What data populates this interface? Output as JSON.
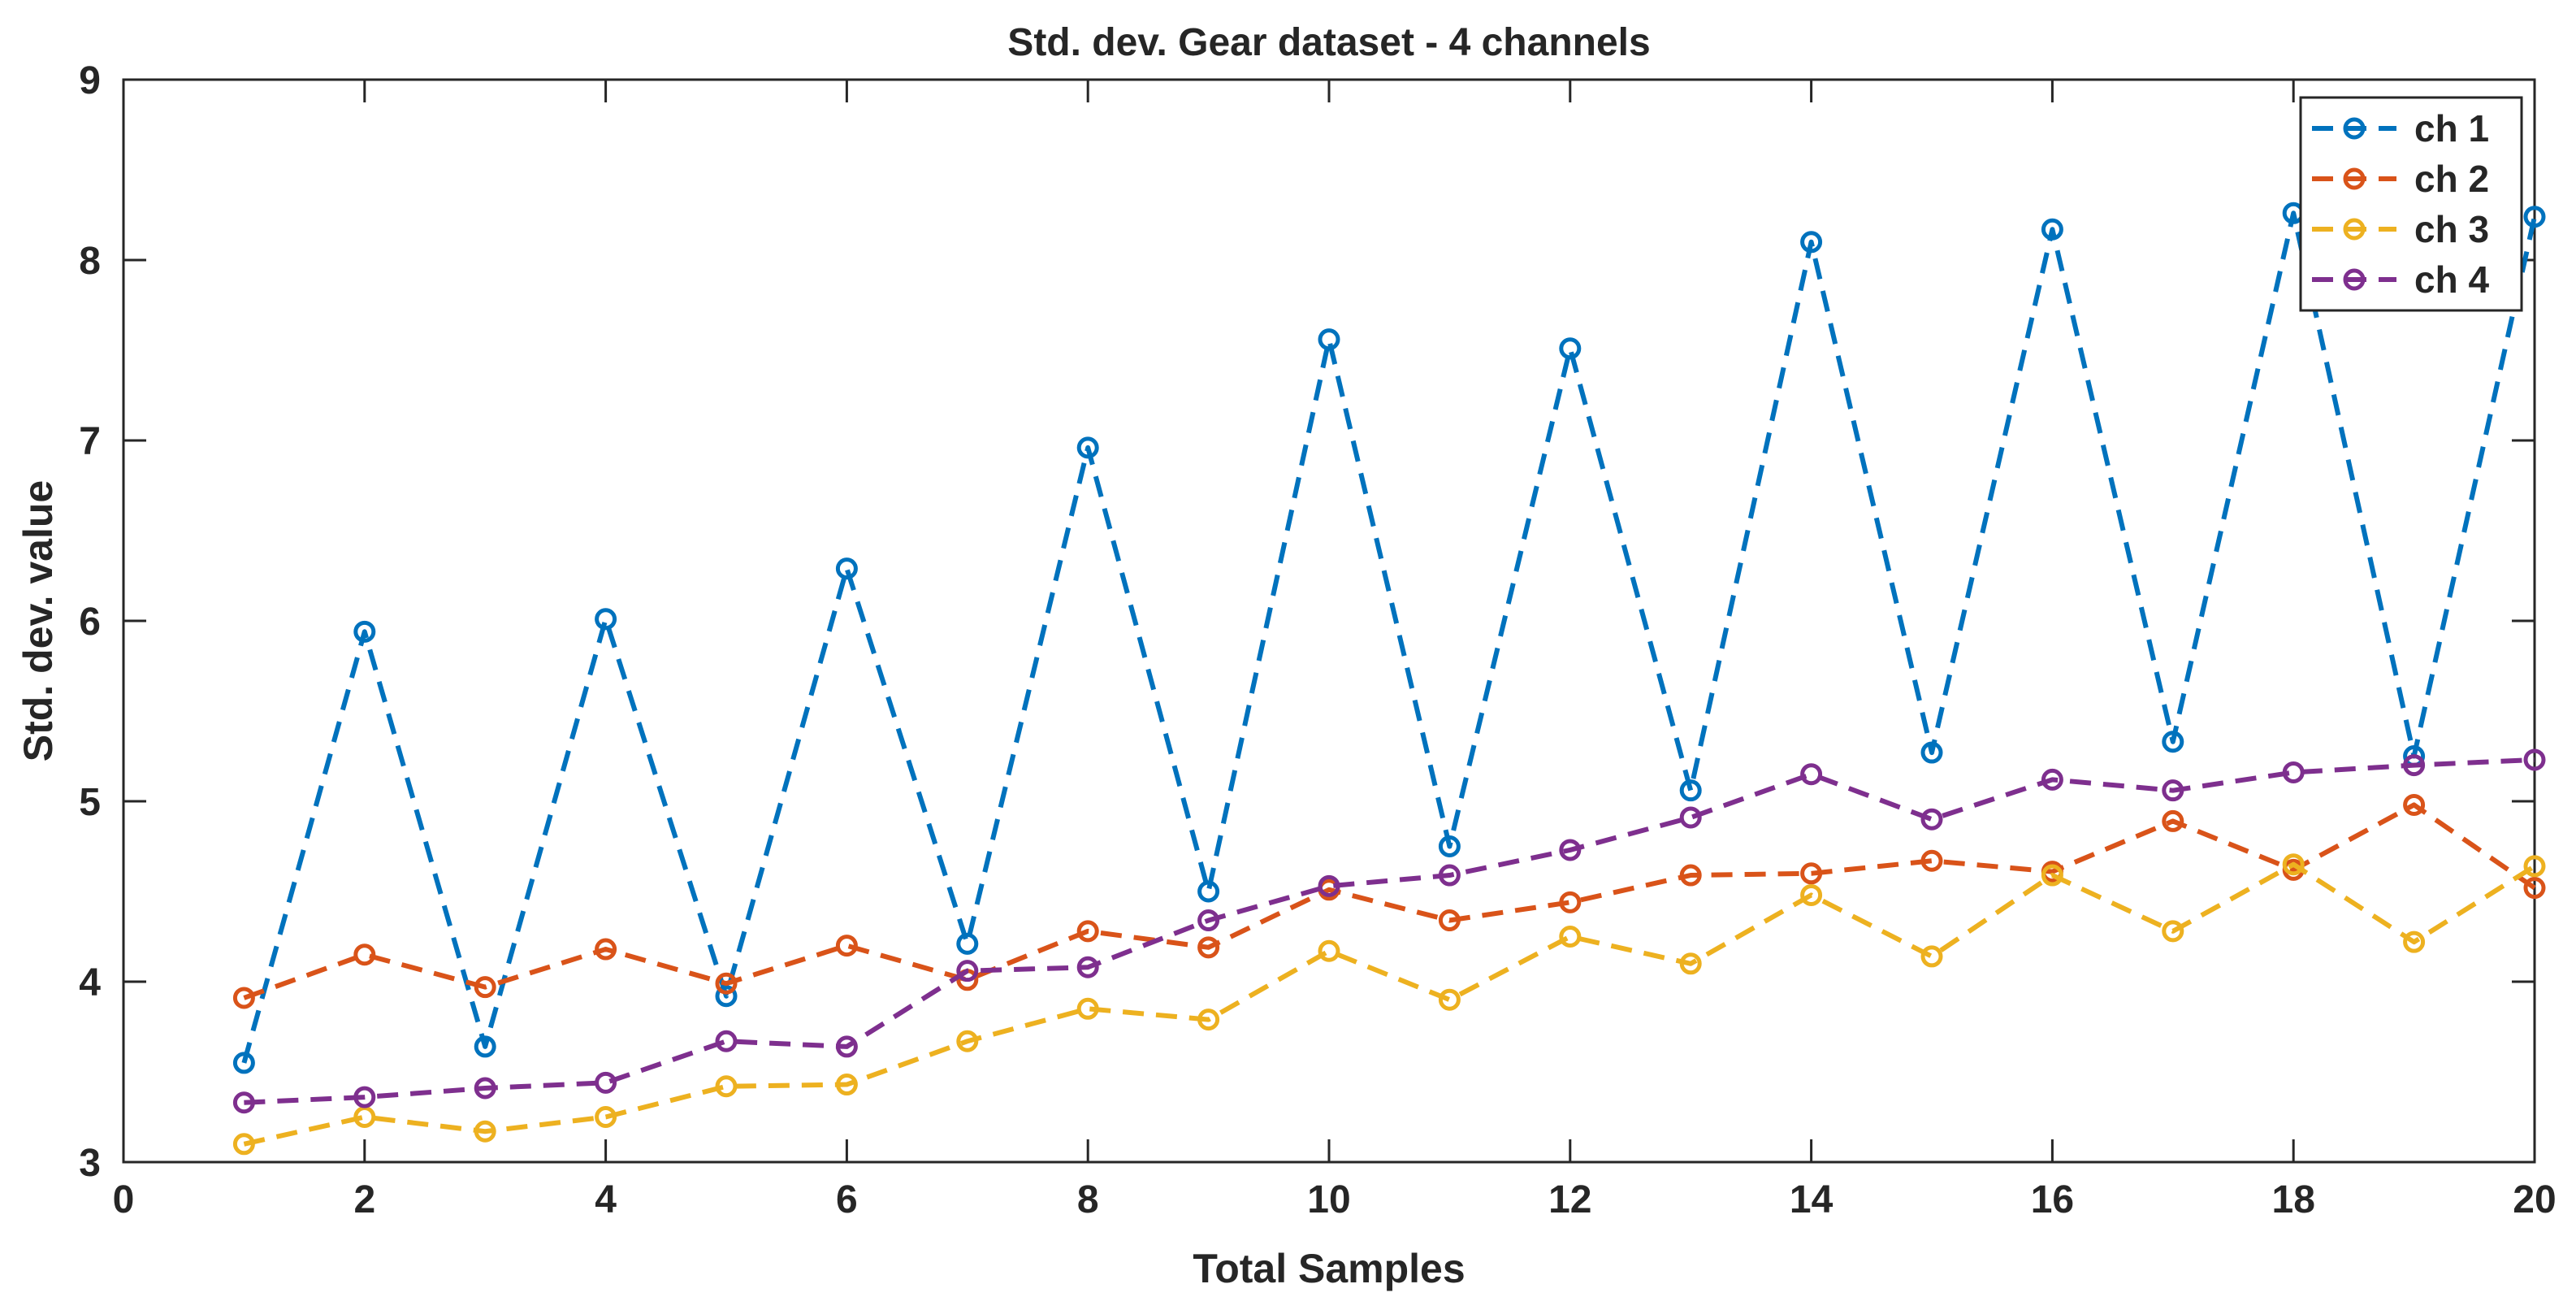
{
  "chart_data": {
    "type": "line",
    "title": "Std. dev. Gear dataset - 4 channels",
    "xlabel": "Total Samples",
    "ylabel": "Std. dev. value",
    "xlim": [
      0,
      20
    ],
    "ylim": [
      3,
      9
    ],
    "xticks": [
      0,
      2,
      4,
      6,
      8,
      10,
      12,
      14,
      16,
      18,
      20
    ],
    "yticks": [
      3,
      4,
      5,
      6,
      7,
      8,
      9
    ],
    "grid": false,
    "legend_position": "top-right",
    "x": [
      1,
      2,
      3,
      4,
      5,
      6,
      7,
      8,
      9,
      10,
      11,
      12,
      13,
      14,
      15,
      16,
      17,
      18,
      19,
      20
    ],
    "series": [
      {
        "name": "ch 1",
        "color": "#0072BD",
        "values": [
          3.55,
          5.94,
          3.64,
          6.01,
          3.92,
          6.29,
          4.21,
          6.96,
          4.5,
          7.56,
          4.75,
          7.51,
          5.06,
          8.1,
          5.27,
          8.17,
          5.33,
          8.26,
          5.25,
          8.24
        ]
      },
      {
        "name": "ch 2",
        "color": "#D95319",
        "values": [
          3.91,
          4.15,
          3.97,
          4.18,
          3.99,
          4.2,
          4.01,
          4.28,
          4.19,
          4.51,
          4.34,
          4.44,
          4.59,
          4.6,
          4.67,
          4.61,
          4.89,
          4.62,
          4.98,
          4.52
        ]
      },
      {
        "name": "ch 3",
        "color": "#EDB120",
        "values": [
          3.1,
          3.25,
          3.17,
          3.25,
          3.42,
          3.43,
          3.67,
          3.85,
          3.79,
          4.17,
          3.9,
          4.25,
          4.1,
          4.48,
          4.14,
          4.59,
          4.28,
          4.65,
          4.22,
          4.64
        ]
      },
      {
        "name": "ch 4",
        "color": "#7E2F8E",
        "values": [
          3.33,
          3.36,
          3.41,
          3.44,
          3.67,
          3.64,
          4.06,
          4.08,
          4.34,
          4.53,
          4.59,
          4.73,
          4.91,
          5.15,
          4.9,
          5.12,
          5.06,
          5.16,
          5.2,
          5.23
        ]
      }
    ]
  }
}
